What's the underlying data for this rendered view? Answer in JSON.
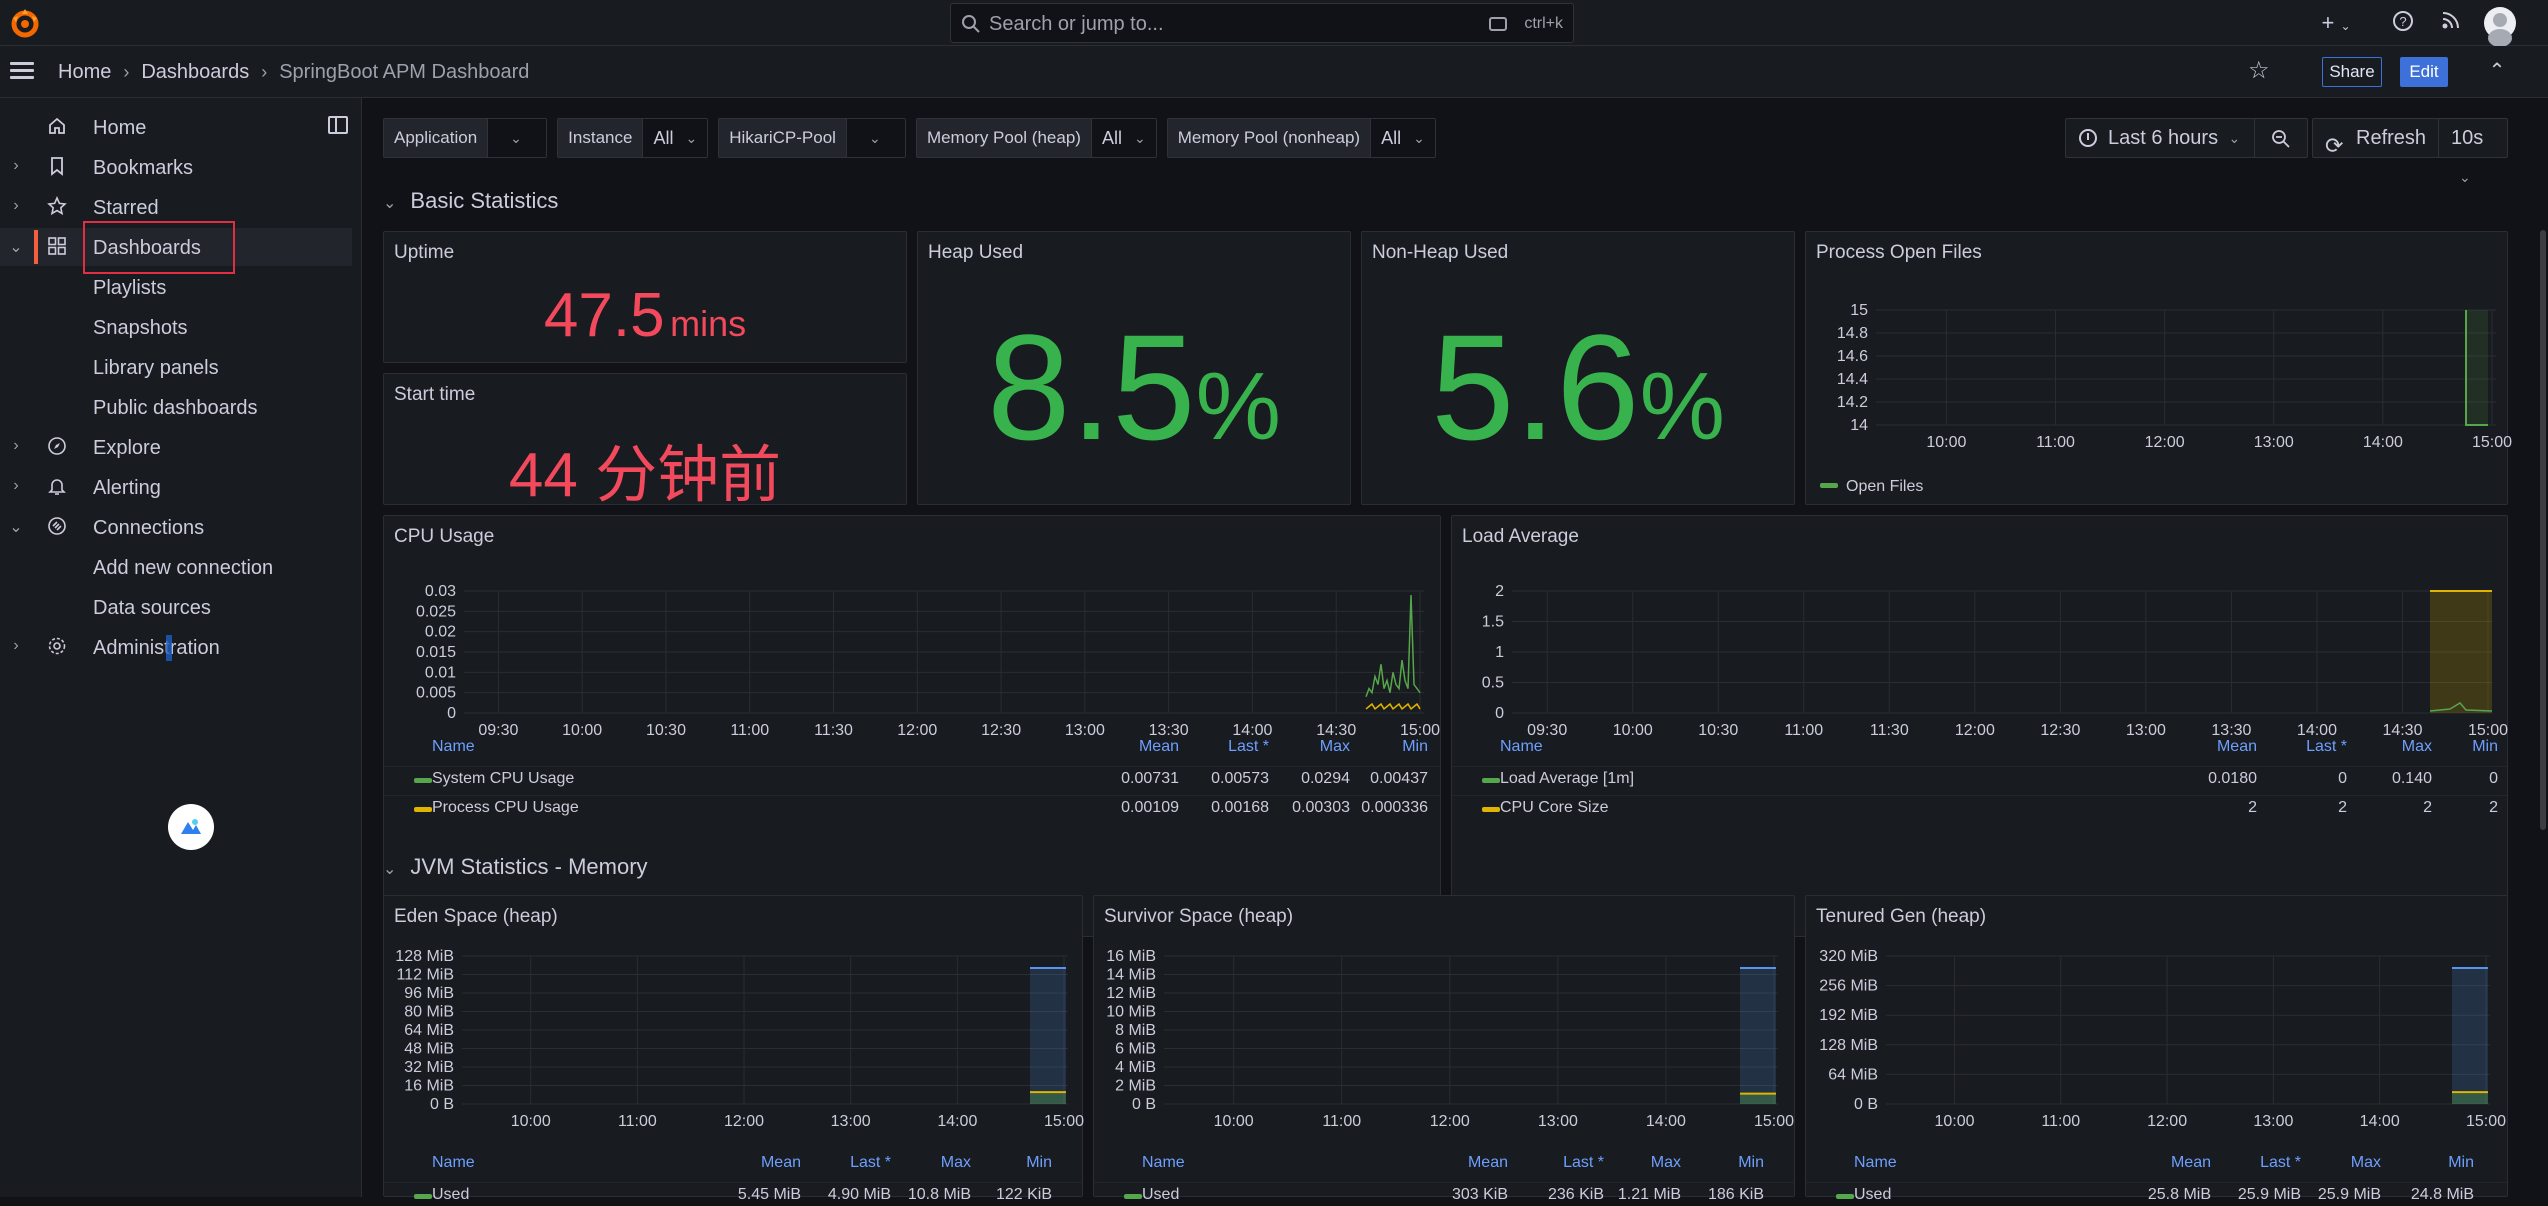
{
  "topbar": {
    "search_placeholder": "Search or jump to...",
    "search_shortcut": "ctrl+k"
  },
  "breadcrumb": [
    "Home",
    "Dashboards",
    "SpringBoot APM Dashboard"
  ],
  "actions": {
    "share": "Share",
    "edit": "Edit"
  },
  "sidebar": {
    "items": [
      {
        "label": "Home",
        "icon": "home-icon"
      },
      {
        "label": "Bookmarks",
        "icon": "bookmark-icon"
      },
      {
        "label": "Starred",
        "icon": "star-icon"
      },
      {
        "label": "Dashboards",
        "icon": "grid-icon"
      },
      {
        "label": "Playlists"
      },
      {
        "label": "Snapshots"
      },
      {
        "label": "Library panels"
      },
      {
        "label": "Public dashboards"
      },
      {
        "label": "Explore",
        "icon": "compass-icon"
      },
      {
        "label": "Alerting",
        "icon": "bell-icon"
      },
      {
        "label": "Connections",
        "icon": "connections-icon"
      },
      {
        "label": "Add new connection"
      },
      {
        "label": "Data sources"
      },
      {
        "label": "Administration",
        "icon": "gear-icon"
      }
    ]
  },
  "variables": [
    {
      "label": "Application",
      "value": ""
    },
    {
      "label": "Instance",
      "value": "All"
    },
    {
      "label": "HikariCP-Pool",
      "value": ""
    },
    {
      "label": "Memory Pool (heap)",
      "value": "All"
    },
    {
      "label": "Memory Pool (nonheap)",
      "value": "All"
    }
  ],
  "time_range": "Last 6 hours",
  "refresh": {
    "label": "Refresh",
    "interval": "10s"
  },
  "rows": {
    "basic": "Basic Statistics",
    "jvm_memory": "JVM Statistics - Memory"
  },
  "stats": {
    "uptime": {
      "title": "Uptime",
      "value": "47.5",
      "unit": "mins"
    },
    "start_time": {
      "title": "Start time",
      "value": "44 分钟前"
    },
    "heap_used": {
      "title": "Heap Used",
      "value": "8.5",
      "unit": "%"
    },
    "non_heap_used": {
      "title": "Non-Heap Used",
      "value": "5.6",
      "unit": "%"
    }
  },
  "colors": {
    "green": "#56a64b",
    "yellow": "#e0b400",
    "red": "#f2495c",
    "stat_green": "#37b24d"
  },
  "open_files": {
    "title": "Process Open Files",
    "legend": "Open Files",
    "chart_data": {
      "type": "line",
      "y_ticks": [
        "15",
        "14.8",
        "14.6",
        "14.4",
        "14.2",
        "14"
      ],
      "x_ticks": [
        "10:00",
        "11:00",
        "12:00",
        "13:00",
        "14:00",
        "15:00"
      ],
      "ylim": [
        14,
        15
      ]
    }
  },
  "cpu": {
    "title": "CPU Usage",
    "chart_data": {
      "type": "line",
      "y_ticks": [
        "0.03",
        "0.025",
        "0.02",
        "0.015",
        "0.01",
        "0.005",
        "0"
      ],
      "x_ticks": [
        "09:30",
        "10:00",
        "10:30",
        "11:00",
        "11:30",
        "12:00",
        "12:30",
        "13:00",
        "13:30",
        "14:00",
        "14:30",
        "15:00"
      ],
      "ylim": [
        0,
        0.03
      ]
    },
    "legend_headers": [
      "Name",
      "Mean",
      "Last *",
      "Max",
      "Min"
    ],
    "legend": [
      {
        "name": "System CPU Usage",
        "mean": "0.00731",
        "last": "0.00573",
        "max": "0.0294",
        "min": "0.00437"
      },
      {
        "name": "Process CPU Usage",
        "mean": "0.00109",
        "last": "0.00168",
        "max": "0.00303",
        "min": "0.000336"
      }
    ]
  },
  "load": {
    "title": "Load Average",
    "chart_data": {
      "type": "line",
      "y_ticks": [
        "2",
        "1.5",
        "1",
        "0.5",
        "0"
      ],
      "x_ticks": [
        "09:30",
        "10:00",
        "10:30",
        "11:00",
        "11:30",
        "12:00",
        "12:30",
        "13:00",
        "13:30",
        "14:00",
        "14:30",
        "15:00"
      ],
      "ylim": [
        0,
        2
      ]
    },
    "legend_headers": [
      "Name",
      "Mean",
      "Last *",
      "Max",
      "Min"
    ],
    "legend": [
      {
        "name": "Load Average [1m]",
        "mean": "0.0180",
        "last": "0",
        "max": "0.140",
        "min": "0"
      },
      {
        "name": "CPU Core Size",
        "mean": "2",
        "last": "2",
        "max": "2",
        "min": "2"
      }
    ]
  },
  "eden": {
    "title": "Eden Space (heap)",
    "chart_data": {
      "type": "area",
      "y_ticks": [
        "128 MiB",
        "112 MiB",
        "96 MiB",
        "80 MiB",
        "64 MiB",
        "48 MiB",
        "32 MiB",
        "16 MiB",
        "0 B"
      ],
      "x_ticks": [
        "10:00",
        "11:00",
        "12:00",
        "13:00",
        "14:00",
        "15:00"
      ]
    },
    "legend_headers": [
      "Name",
      "Mean",
      "Last *",
      "Max",
      "Min"
    ],
    "legend": [
      {
        "name": "Used",
        "mean": "5.45 MiB",
        "last": "4.90 MiB",
        "max": "10.8 MiB",
        "min": "122 KiB"
      }
    ]
  },
  "survivor": {
    "title": "Survivor Space (heap)",
    "chart_data": {
      "type": "area",
      "y_ticks": [
        "16 MiB",
        "14 MiB",
        "12 MiB",
        "10 MiB",
        "8 MiB",
        "6 MiB",
        "4 MiB",
        "2 MiB",
        "0 B"
      ],
      "x_ticks": [
        "10:00",
        "11:00",
        "12:00",
        "13:00",
        "14:00",
        "15:00"
      ]
    },
    "legend_headers": [
      "Name",
      "Mean",
      "Last *",
      "Max",
      "Min"
    ],
    "legend": [
      {
        "name": "Used",
        "mean": "303 KiB",
        "last": "236 KiB",
        "max": "1.21 MiB",
        "min": "186 KiB"
      }
    ]
  },
  "tenured": {
    "title": "Tenured Gen (heap)",
    "chart_data": {
      "type": "area",
      "y_ticks": [
        "320 MiB",
        "256 MiB",
        "192 MiB",
        "128 MiB",
        "64 MiB",
        "0 B"
      ],
      "x_ticks": [
        "10:00",
        "11:00",
        "12:00",
        "13:00",
        "14:00",
        "15:00"
      ]
    },
    "legend_headers": [
      "Name",
      "Mean",
      "Last *",
      "Max",
      "Min"
    ],
    "legend": [
      {
        "name": "Used",
        "mean": "25.8 MiB",
        "last": "25.9 MiB",
        "max": "25.9 MiB",
        "min": "24.8 MiB"
      }
    ]
  }
}
